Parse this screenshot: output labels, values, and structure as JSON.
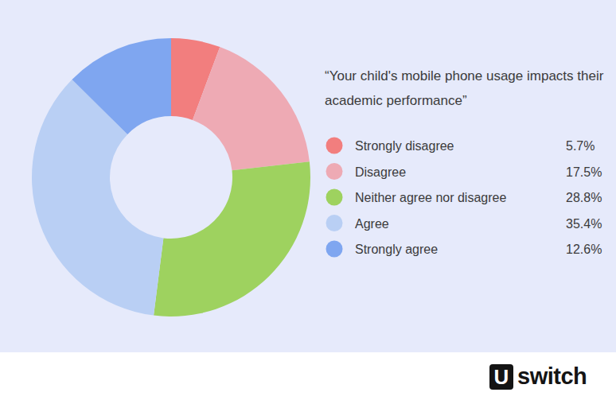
{
  "chart_data": {
    "type": "donut",
    "title": "“Your child's mobile phone usage impacts their academic performance”",
    "categories": [
      "Strongly disagree",
      "Disagree",
      "Neither agree nor disagree",
      "Agree",
      "Strongly agree"
    ],
    "values": [
      5.7,
      17.5,
      28.8,
      35.4,
      12.6
    ],
    "value_labels": [
      "5.7%",
      "17.5%",
      "28.8%",
      "35.4%",
      "12.6%"
    ],
    "colors": [
      "#f27e7e",
      "#eeaab4",
      "#9ed25f",
      "#b9cff4",
      "#7fa6f0"
    ],
    "legend": "right"
  },
  "branding": {
    "mark": "U",
    "name": "switch"
  }
}
